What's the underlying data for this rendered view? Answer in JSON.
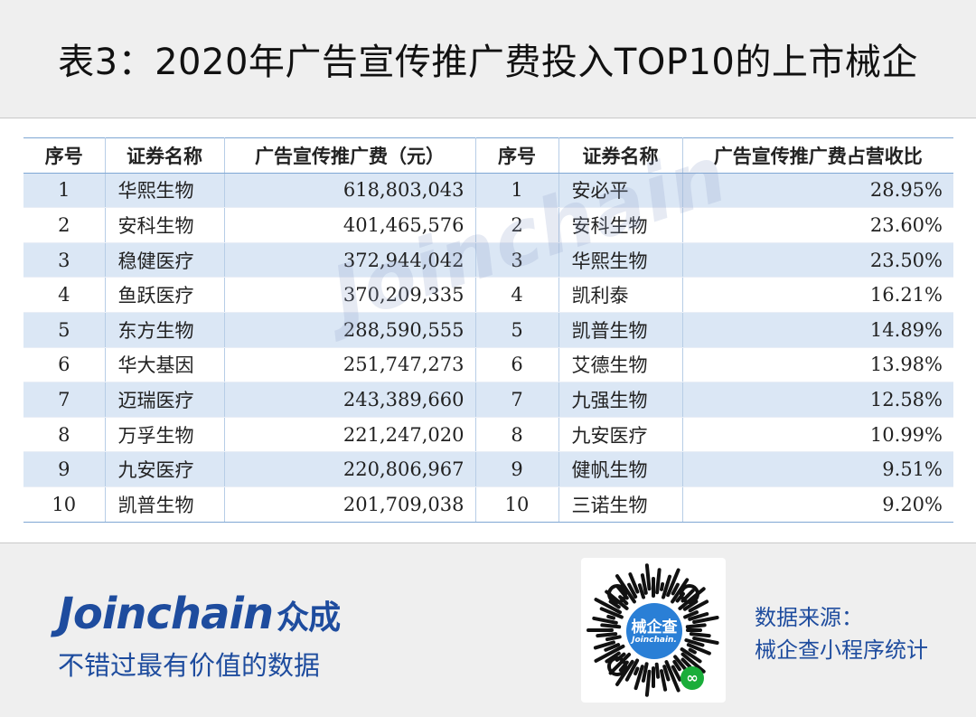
{
  "header": {
    "title": "表3：2020年广告宣传推广费投入TOP10的上市械企"
  },
  "table": {
    "headers": [
      "序号",
      "证券名称",
      "广告宣传推广费（元）",
      "序号",
      "证券名称",
      "广告宣传推广费占营收比"
    ],
    "rows": [
      [
        "1",
        "华熙生物",
        "618,803,043",
        "1",
        "安必平",
        "28.95%"
      ],
      [
        "2",
        "安科生物",
        "401,465,576",
        "2",
        "安科生物",
        "23.60%"
      ],
      [
        "3",
        "稳健医疗",
        "372,944,042",
        "3",
        "华熙生物",
        "23.50%"
      ],
      [
        "4",
        "鱼跃医疗",
        "370,209,335",
        "4",
        "凯利泰",
        "16.21%"
      ],
      [
        "5",
        "东方生物",
        "288,590,555",
        "5",
        "凯普生物",
        "14.89%"
      ],
      [
        "6",
        "华大基因",
        "251,747,273",
        "6",
        "艾德生物",
        "13.98%"
      ],
      [
        "7",
        "迈瑞医疗",
        "243,389,660",
        "7",
        "九强生物",
        "12.58%"
      ],
      [
        "8",
        "万孚生物",
        "221,247,020",
        "8",
        "九安医疗",
        "10.99%"
      ],
      [
        "9",
        "九安医疗",
        "220,806,967",
        "9",
        "健帆生物",
        "9.51%"
      ],
      [
        "10",
        "凯普生物",
        "201,709,038",
        "10",
        "三诺生物",
        "9.20%"
      ]
    ]
  },
  "watermark": {
    "text": "Joinchain"
  },
  "footer": {
    "brand_en": "Joinchain",
    "brand_cn": "众成",
    "slogan": "不错过最有价值的数据",
    "qr_label_cn": "械企查",
    "qr_label_en": "Joinchain.",
    "source_line1": "数据来源：",
    "source_line2": "械企查小程序统计"
  },
  "colors": {
    "accent": "#1e4c9e",
    "row_stripe": "#dbe7f5",
    "rule": "#7fa7d4"
  },
  "icons": {
    "qr": "qr-code-icon",
    "mini_program": "mini-program-icon"
  }
}
